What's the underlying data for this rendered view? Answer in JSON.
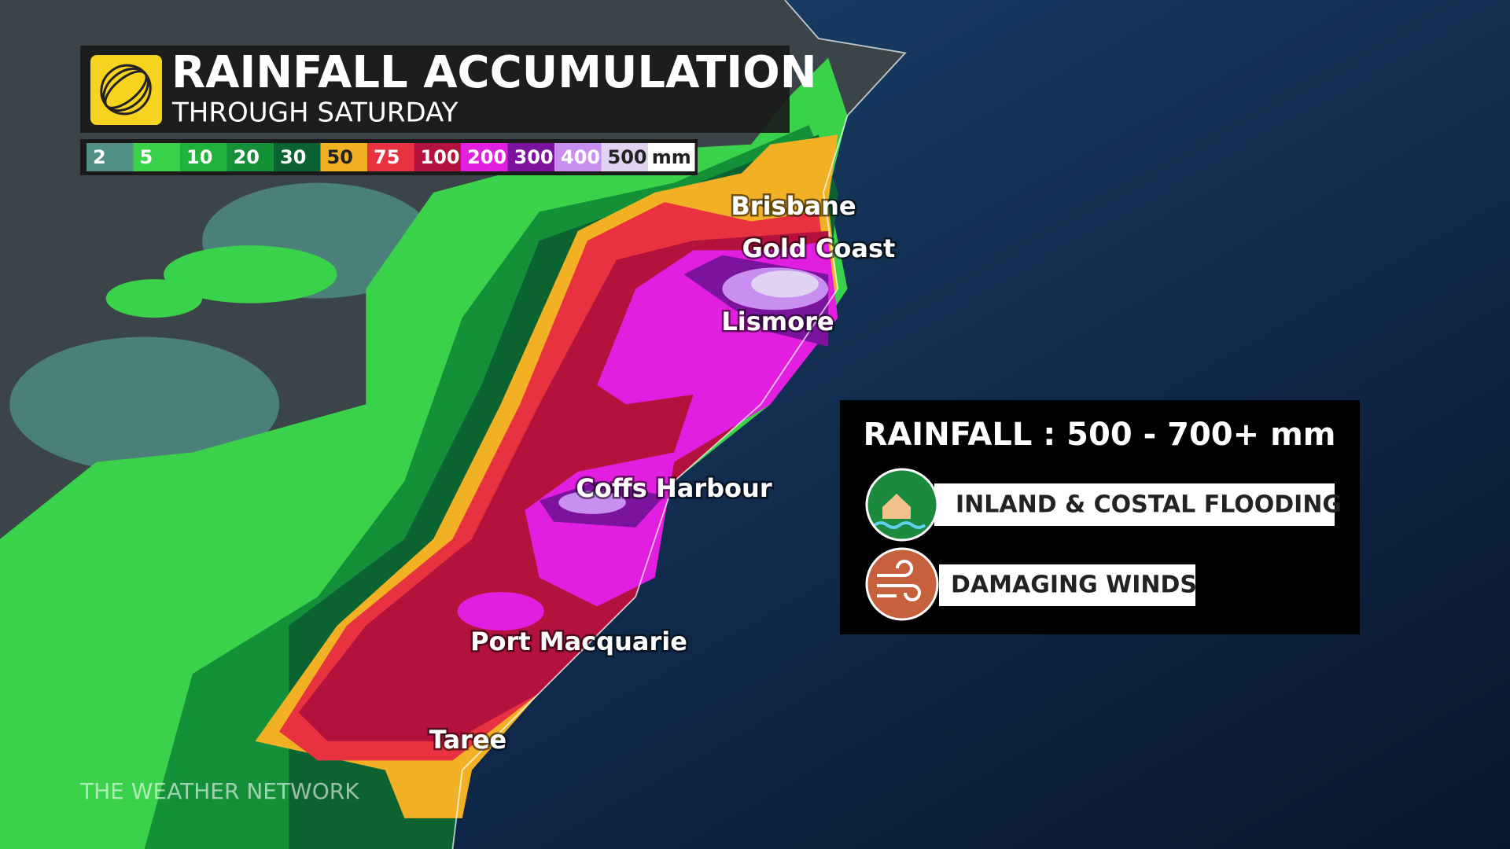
{
  "header": {
    "title": "RAINFALL ACCUMULATION",
    "subtitle": "THROUGH SATURDAY"
  },
  "legend": {
    "items": [
      {
        "label": "2",
        "color": "#4f8f86"
      },
      {
        "label": "5",
        "color": "#39d24a"
      },
      {
        "label": "10",
        "color": "#1fb23c"
      },
      {
        "label": "20",
        "color": "#139038"
      },
      {
        "label": "30",
        "color": "#0b6331"
      },
      {
        "label": "50",
        "color": "#f2b125"
      },
      {
        "label": "75",
        "color": "#e8323f"
      },
      {
        "label": "100",
        "color": "#b3123c"
      },
      {
        "label": "200",
        "color": "#e21fe0"
      },
      {
        "label": "300",
        "color": "#7c139d"
      },
      {
        "label": "400",
        "color": "#c98ff0"
      },
      {
        "label": "500",
        "color": "#e3d3f2"
      },
      {
        "label": "mm",
        "color": "#ffffff"
      }
    ]
  },
  "cities": [
    "Brisbane",
    "Gold Coast",
    "Lismore",
    "Coffs Harbour",
    "Port Macquarie",
    "Taree"
  ],
  "info_box": {
    "title": "RAINFALL : 500 - 700+ mm",
    "hazards": [
      "INLAND & COSTAL FLOODING",
      "DAMAGING WINDS"
    ]
  },
  "watermark": "THE WEATHER NETWORK"
}
